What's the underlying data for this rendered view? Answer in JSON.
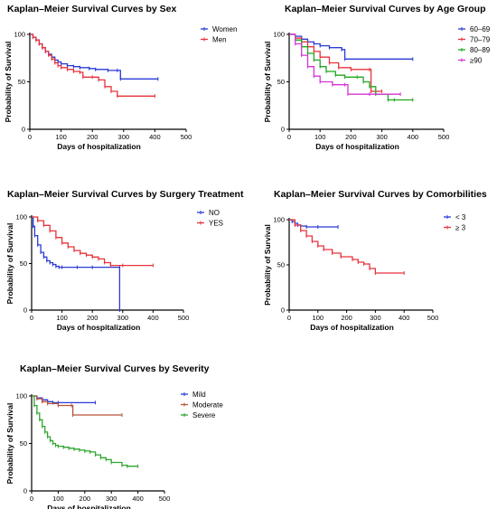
{
  "chart_data": [
    {
      "type": "line",
      "title": "Kaplan–Meier Survival Curves by Sex",
      "xlabel": "Days of hospitalization",
      "ylabel": "Probability of Survival",
      "xlim": [
        0,
        500
      ],
      "ylim": [
        0,
        100
      ],
      "xticks": [
        "0",
        "100",
        "200",
        "300",
        "400",
        "500"
      ],
      "yticks": [
        "0",
        "50",
        "100"
      ],
      "legend_position": "top-right",
      "series": [
        {
          "name": "Women",
          "color": "#2a3bd6",
          "x": [
            0,
            10,
            20,
            30,
            40,
            50,
            60,
            70,
            80,
            90,
            100,
            120,
            140,
            160,
            190,
            210,
            250,
            280,
            290,
            410
          ],
          "y": [
            100,
            97,
            94,
            90,
            86,
            82,
            79,
            76,
            73,
            71,
            69,
            67,
            66,
            65,
            64,
            63,
            62,
            62,
            53,
            53
          ]
        },
        {
          "name": "Men",
          "color": "#e8333b",
          "x": [
            0,
            10,
            20,
            30,
            40,
            50,
            60,
            70,
            80,
            90,
            100,
            120,
            140,
            160,
            170,
            200,
            220,
            240,
            260,
            280,
            400
          ],
          "y": [
            100,
            97,
            94,
            90,
            86,
            82,
            78,
            74,
            70,
            67,
            65,
            63,
            61,
            60,
            55,
            55,
            52,
            45,
            40,
            35,
            35
          ]
        }
      ]
    },
    {
      "type": "line",
      "title": "Kaplan–Meier Survival Curves by Age Group",
      "xlabel": "Days of hospitalization",
      "ylabel": "Probability of Survival",
      "xlim": [
        0,
        500
      ],
      "ylim": [
        0,
        100
      ],
      "xticks": [
        "0",
        "100",
        "200",
        "300",
        "400",
        "500"
      ],
      "yticks": [
        "0",
        "50",
        "100"
      ],
      "legend_position": "top-right",
      "series": [
        {
          "name": "60–69",
          "color": "#2a3bd6",
          "x": [
            0,
            20,
            40,
            60,
            80,
            100,
            130,
            170,
            180,
            400
          ],
          "y": [
            100,
            98,
            95,
            92,
            90,
            88,
            86,
            84,
            74,
            74
          ]
        },
        {
          "name": "70–79",
          "color": "#e8333b",
          "x": [
            0,
            20,
            40,
            60,
            80,
            100,
            130,
            160,
            200,
            260,
            265,
            300
          ],
          "y": [
            100,
            96,
            92,
            87,
            82,
            76,
            70,
            65,
            63,
            63,
            40,
            40
          ]
        },
        {
          "name": "80–89",
          "color": "#1fa81f",
          "x": [
            0,
            20,
            40,
            60,
            80,
            100,
            120,
            150,
            180,
            220,
            240,
            260,
            280,
            320,
            340,
            400
          ],
          "y": [
            100,
            94,
            87,
            80,
            73,
            66,
            61,
            57,
            55,
            55,
            50,
            45,
            37,
            31,
            31,
            31
          ]
        },
        {
          "name": "≥90",
          "color": "#d336d3",
          "x": [
            0,
            20,
            40,
            60,
            80,
            100,
            140,
            180,
            190,
            260,
            360
          ],
          "y": [
            100,
            90,
            78,
            66,
            56,
            50,
            47,
            47,
            37,
            37,
            37
          ]
        }
      ]
    },
    {
      "type": "line",
      "title": "Kaplan–Meier Survival Curves by Surgery Treatment",
      "xlabel": "Days of hospitalization",
      "ylabel": "Probability of Survival",
      "xlim": [
        0,
        500
      ],
      "ylim": [
        0,
        100
      ],
      "xticks": [
        "0",
        "100",
        "200",
        "300",
        "400",
        "500"
      ],
      "yticks": [
        "0",
        "50",
        "100"
      ],
      "legend_position": "top-right",
      "series": [
        {
          "name": "NO",
          "color": "#2a3bd6",
          "x": [
            0,
            5,
            10,
            20,
            30,
            40,
            50,
            60,
            70,
            80,
            90,
            100,
            150,
            200,
            290,
            290
          ],
          "y": [
            100,
            90,
            80,
            70,
            62,
            57,
            53,
            51,
            49,
            47,
            46,
            46,
            46,
            46,
            46,
            0
          ]
        },
        {
          "name": "YES",
          "color": "#e8333b",
          "x": [
            0,
            20,
            40,
            60,
            80,
            100,
            120,
            140,
            160,
            180,
            200,
            220,
            240,
            260,
            300,
            400
          ],
          "y": [
            100,
            96,
            91,
            85,
            78,
            72,
            68,
            64,
            61,
            59,
            57,
            55,
            51,
            48,
            48,
            48
          ]
        }
      ]
    },
    {
      "type": "line",
      "title": "Kaplan–Meier Survival Curves by Comorbilities",
      "xlabel": "Days of hospitalization",
      "ylabel": "Probability of Survival",
      "xlim": [
        0,
        500
      ],
      "ylim": [
        0,
        100
      ],
      "xticks": [
        "0",
        "100",
        "200",
        "300",
        "400",
        "500"
      ],
      "yticks": [
        "0",
        "50",
        "100"
      ],
      "legend_position": "top-right",
      "series": [
        {
          "name": "< 3",
          "color": "#2a3bd6",
          "x": [
            0,
            10,
            20,
            30,
            40,
            60,
            100,
            170
          ],
          "y": [
            100,
            98,
            96,
            94,
            93,
            92,
            92,
            92
          ]
        },
        {
          "name": "≥ 3",
          "color": "#e8333b",
          "x": [
            0,
            20,
            40,
            60,
            80,
            100,
            120,
            150,
            180,
            220,
            240,
            260,
            280,
            300,
            400
          ],
          "y": [
            100,
            94,
            88,
            82,
            76,
            71,
            67,
            63,
            59,
            56,
            53,
            51,
            46,
            41,
            41
          ]
        }
      ]
    },
    {
      "type": "line",
      "title": "Kaplan–Meier Survival Curves by Severity",
      "xlabel": "Days of hospitalization",
      "ylabel": "Probability of Survival",
      "xlim": [
        0,
        500
      ],
      "ylim": [
        0,
        100
      ],
      "xticks": [
        "0",
        "100",
        "200",
        "300",
        "400",
        "500"
      ],
      "yticks": [
        "0",
        "50",
        "100"
      ],
      "legend_position": "top-right",
      "series": [
        {
          "name": "Mild",
          "color": "#2a3bd6",
          "x": [
            0,
            20,
            40,
            60,
            80,
            100,
            240
          ],
          "y": [
            100,
            98,
            96,
            94,
            93,
            93,
            93
          ]
        },
        {
          "name": "Moderate",
          "color": "#b8503a",
          "x": [
            0,
            20,
            40,
            60,
            100,
            150,
            155,
            340
          ],
          "y": [
            100,
            97,
            94,
            92,
            90,
            90,
            80,
            80
          ]
        },
        {
          "name": "Severe",
          "color": "#2fa52f",
          "x": [
            0,
            10,
            20,
            30,
            40,
            50,
            60,
            70,
            80,
            90,
            100,
            120,
            140,
            160,
            180,
            200,
            220,
            240,
            260,
            280,
            300,
            340,
            360,
            400
          ],
          "y": [
            100,
            90,
            82,
            75,
            68,
            62,
            57,
            53,
            50,
            48,
            47,
            46,
            45,
            44,
            43,
            42,
            41,
            38,
            35,
            33,
            30,
            27,
            26,
            26
          ]
        }
      ]
    }
  ]
}
